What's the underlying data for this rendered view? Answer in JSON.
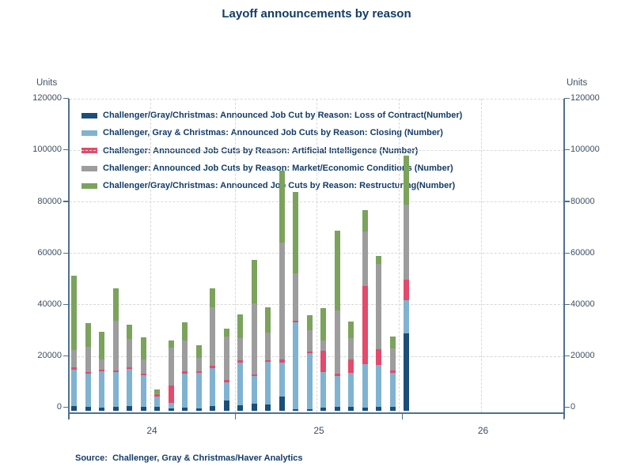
{
  "title": "Layoff announcements by reason",
  "y_axis": {
    "unit_label_left": "Units",
    "unit_label_right": "Units",
    "ticks": [
      "0",
      "20000",
      "40000",
      "60000",
      "80000",
      "100000",
      "120000"
    ]
  },
  "x_axis": {
    "year_labels": [
      "24",
      "25",
      "26"
    ]
  },
  "source_note": "Source:  Challenger, Gray & Christmas/Haver Analytics",
  "colors": {
    "loss_of_contract": "#1b4e78",
    "closing": "#7fb3d1",
    "artificial_intelligence": "#e34a6c",
    "market_economic_conditions": "#9d9d9d",
    "restructuring": "#7ba35c",
    "title_text": "#133c68",
    "axis_spine": "#4f7090",
    "tick_text": "#3c4f63",
    "gridline": "#d8d8d8"
  },
  "chart_data": {
    "type": "bar",
    "stacked": true,
    "title": "Layoff announcements by reason",
    "xlabel": "",
    "ylabel": "Units",
    "ylim": [
      0,
      120000
    ],
    "ytick_step": 20000,
    "grid": "dashed",
    "legend_position": "top-left",
    "categories": [
      "2024-01",
      "2024-02",
      "2024-03",
      "2024-04",
      "2024-05",
      "2024-06",
      "2024-07",
      "2024-08",
      "2024-09",
      "2024-10",
      "2024-11",
      "2024-12",
      "2025-01",
      "2025-02",
      "2025-03",
      "2025-04",
      "2025-05",
      "2025-06",
      "2025-07",
      "2025-08",
      "2025-09",
      "2025-10",
      "2025-11",
      "2025-12",
      "2026-01"
    ],
    "series": [
      {
        "name": "Challenger/Gray/Christmas: Announced Job Cut by Reason: Loss of Contract(Number)",
        "color": "#1b4e78",
        "values": [
          1800,
          1500,
          1200,
          1600,
          1900,
          1500,
          1400,
          1000,
          1300,
          900,
          1900,
          4000,
          2200,
          2700,
          2400,
          5400,
          600,
          500,
          1300,
          1600,
          1600,
          1200,
          1600,
          1600,
          30200
        ]
      },
      {
        "name": "Challenger, Gray & Christmas: Announced Job Cuts by Reason: Closing (Number)",
        "color": "#7fb3d1",
        "values": [
          14200,
          12900,
          14100,
          13400,
          14300,
          12200,
          4200,
          2000,
          13100,
          13700,
          14700,
          7100,
          16600,
          10800,
          16600,
          13400,
          33700,
          21900,
          13600,
          12000,
          13000,
          17000,
          16300,
          13000,
          12700
        ]
      },
      {
        "name": "Challenger: Announced Job Cuts by Reason: Artificial Intelligence (Number)",
        "color": "#e34a6c",
        "values": [
          800,
          600,
          600,
          700,
          700,
          700,
          700,
          6800,
          800,
          800,
          800,
          800,
          700,
          700,
          700,
          1200,
          700,
          700,
          8400,
          800,
          5300,
          30400,
          6100,
          1000,
          7900
        ]
      },
      {
        "name": "Challenger: Announced Job Cuts by Reason: Market/Economic Conditions (Number)",
        "color": "#9d9d9d",
        "values": [
          6700,
          9800,
          4100,
          19400,
          11000,
          5600,
          500,
          14800,
          12200,
          5100,
          22700,
          17000,
          8700,
          27400,
          10700,
          45400,
          18300,
          8200,
          3900,
          24500,
          8400,
          21000,
          33100,
          8500,
          29400
        ]
      },
      {
        "name": "Challenger/Gray/Christmas: Announced Job Cuts by Reason: Restructuring(Number)",
        "color": "#7ba35c",
        "values": [
          29000,
          9200,
          10700,
          12500,
          5700,
          8500,
          1600,
          2800,
          7100,
          5100,
          7500,
          2900,
          9300,
          16900,
          9900,
          27900,
          31600,
          5800,
          12700,
          31200,
          6400,
          8200,
          3000,
          4600,
          18900
        ]
      }
    ]
  }
}
